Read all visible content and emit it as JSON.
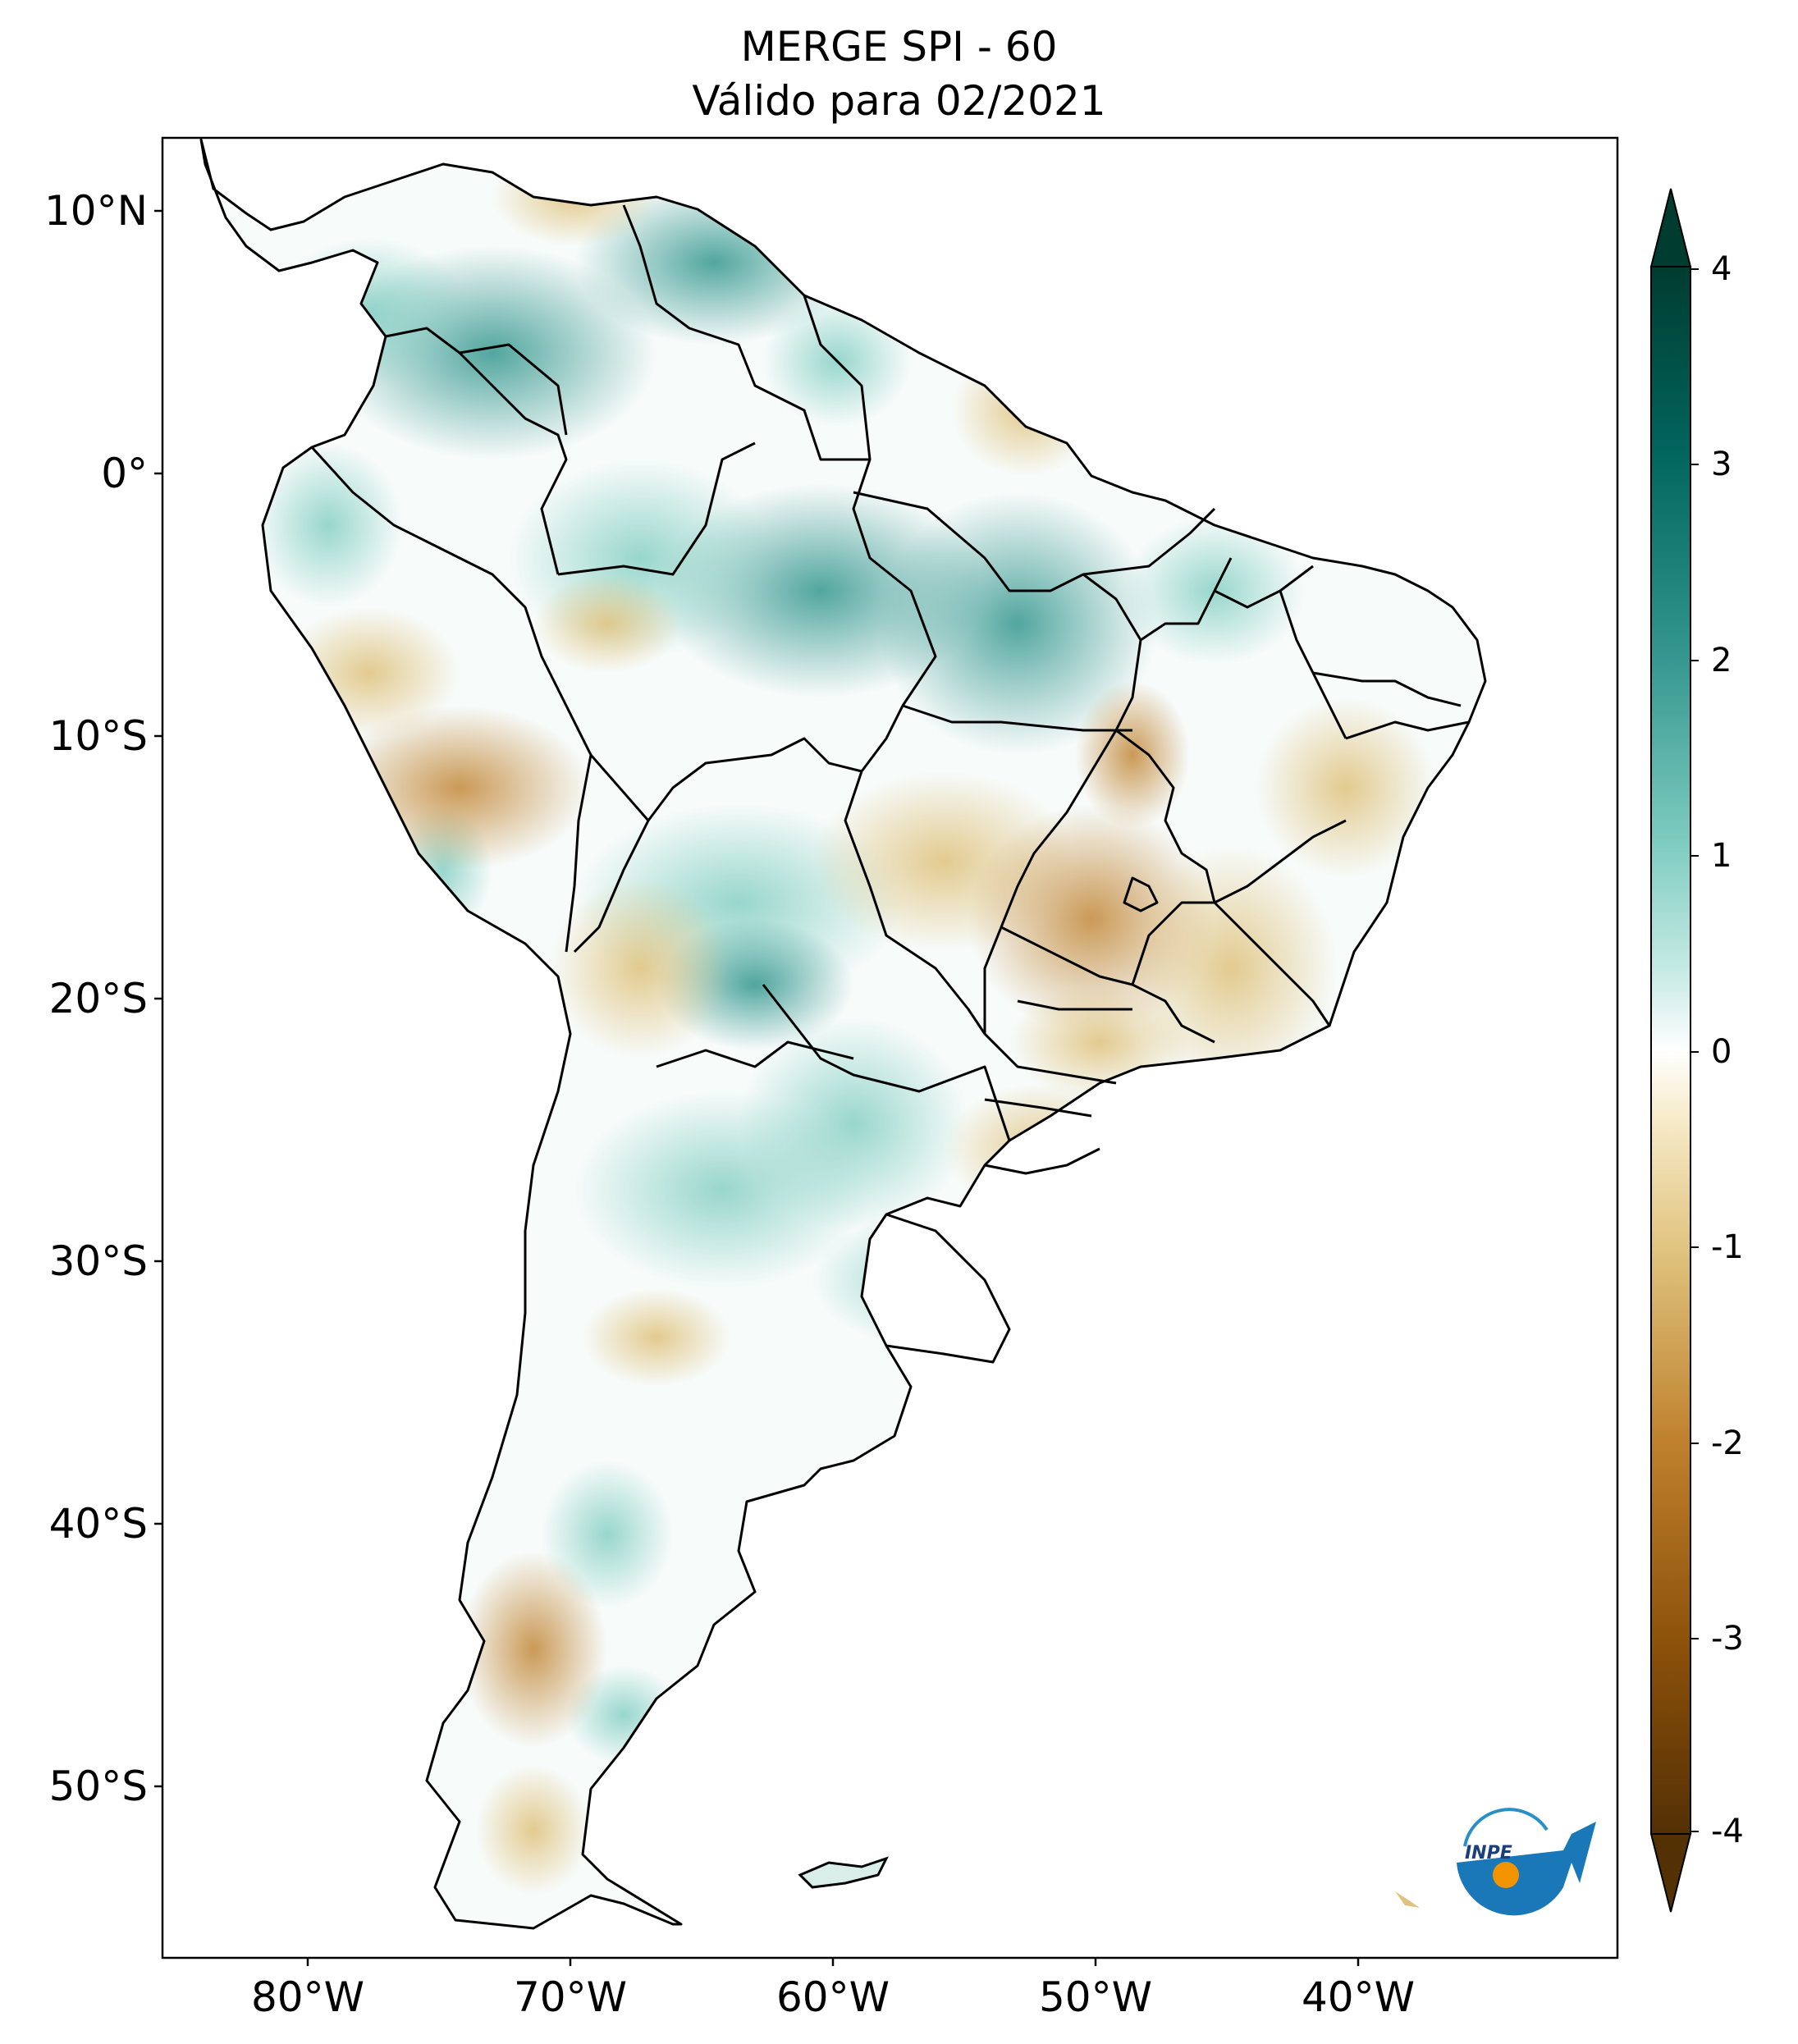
{
  "title_line1": "MERGE   SPI - 60",
  "title_line2": "Válido para 02/2021",
  "lat_labels": [
    "10°N",
    "0°",
    "10°S",
    "20°S",
    "30°S",
    "40°S",
    "50°S"
  ],
  "lon_labels": [
    "80°W",
    "70°W",
    "60°W",
    "50°W",
    "40°W"
  ],
  "colorbar": {
    "ticks": [
      "4",
      "3",
      "2",
      "1",
      "0",
      "-1",
      "-2",
      "-3",
      "-4"
    ],
    "range": [
      -4,
      4
    ],
    "extend": "both",
    "colors": [
      "#543005",
      "#8c510a",
      "#bf812d",
      "#dfc27d",
      "#f6e8c3",
      "#ffffff",
      "#c7eae5",
      "#80cdc1",
      "#35978f",
      "#01665e",
      "#003c30"
    ]
  },
  "logo": {
    "text": "INPE"
  }
}
